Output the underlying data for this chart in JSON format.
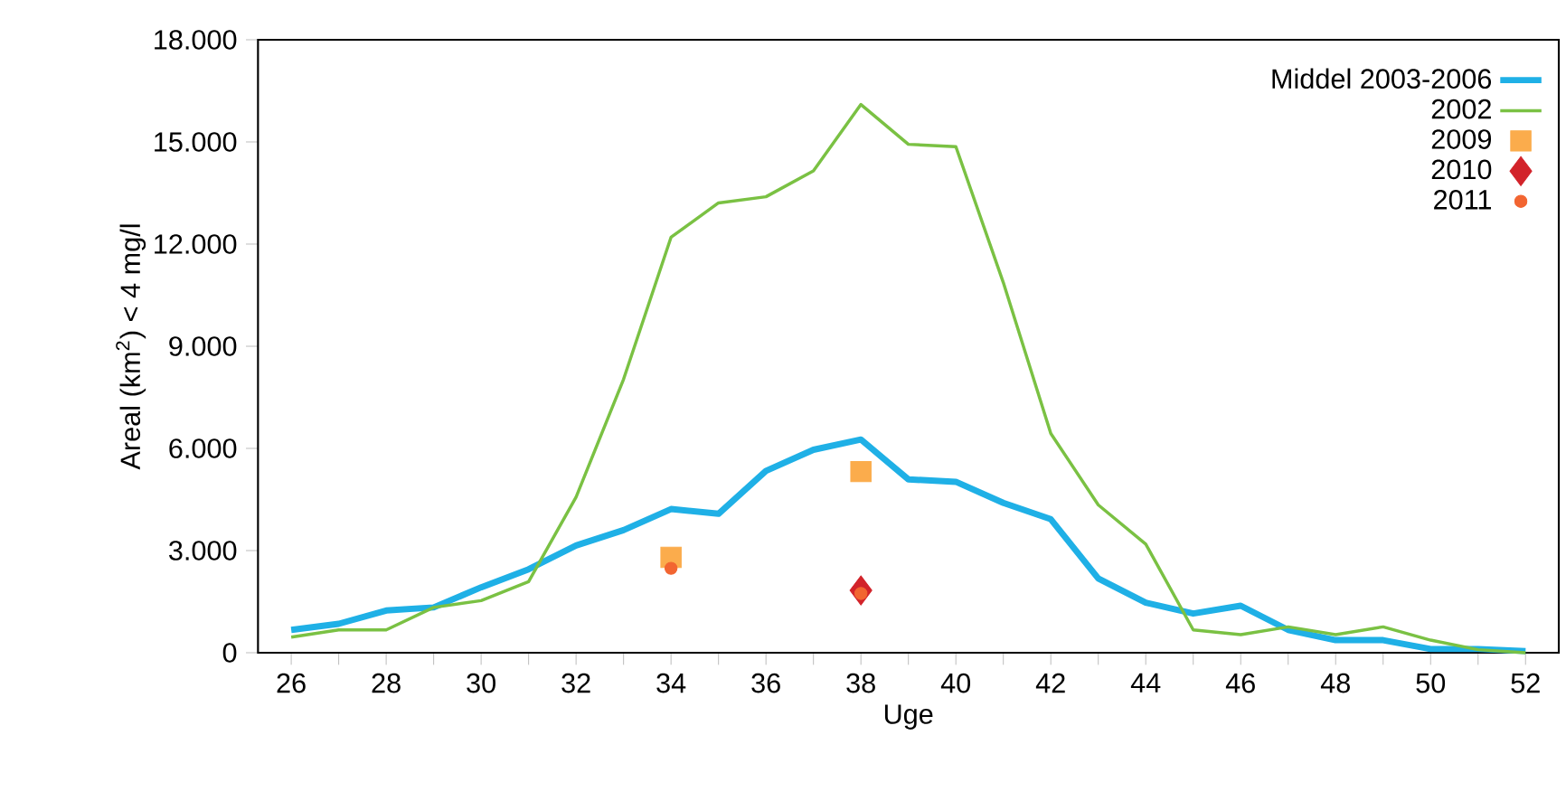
{
  "chart_data": {
    "type": "line",
    "xlabel": "Uge",
    "ylabel": "Areal (km$^{2}$) < 4 mg/l",
    "x": [
      26,
      27,
      28,
      29,
      30,
      31,
      32,
      33,
      34,
      35,
      36,
      37,
      38,
      39,
      40,
      41,
      42,
      43,
      44,
      45,
      46,
      47,
      48,
      49,
      50,
      51,
      52
    ],
    "series": [
      {
        "name": "Middel 2003-2006",
        "color": "#1fb0e6",
        "values": [
          670,
          850,
          1240,
          1330,
          1920,
          2450,
          3150,
          3600,
          4220,
          4080,
          5340,
          5960,
          6260,
          5090,
          5020,
          4400,
          3920,
          2180,
          1470,
          1150,
          1380,
          670,
          370,
          370,
          110,
          110,
          50
        ]
      },
      {
        "name": "2002",
        "color": "#7ac143",
        "values": [
          460,
          670,
          670,
          1330,
          1530,
          2090,
          4570,
          8030,
          12200,
          13210,
          13390,
          14150,
          16100,
          14930,
          14860,
          10870,
          6440,
          4340,
          3190,
          670,
          530,
          760,
          530,
          760,
          370,
          90,
          0
        ]
      },
      {
        "name": "2009",
        "color": "#fbac4c",
        "type": "scatter",
        "marker": "square",
        "values": [
          null,
          null,
          null,
          null,
          null,
          null,
          null,
          null,
          2800,
          null,
          null,
          null,
          5320,
          null,
          null,
          null,
          null,
          null,
          null,
          null,
          null,
          null,
          null,
          null,
          null,
          null,
          null
        ]
      },
      {
        "name": "2010",
        "color": "#d2232a",
        "type": "scatter",
        "marker": "diamond",
        "values": [
          null,
          null,
          null,
          null,
          null,
          null,
          null,
          null,
          null,
          null,
          null,
          null,
          1830,
          null,
          null,
          null,
          null,
          null,
          null,
          null,
          null,
          null,
          null,
          null,
          null,
          null,
          null
        ]
      },
      {
        "name": "2011",
        "color": "#f26531",
        "type": "scatter",
        "marker": "circle",
        "values": [
          null,
          null,
          null,
          null,
          null,
          null,
          null,
          null,
          2480,
          null,
          null,
          null,
          1740,
          null,
          null,
          null,
          null,
          null,
          null,
          null,
          null,
          null,
          null,
          null,
          null,
          null,
          null
        ]
      }
    ],
    "xlim": [
      25.3,
      52.7
    ],
    "xticks": [
      26,
      {
        "value": 27,
        "label": null
      },
      28,
      {
        "value": 29,
        "label": null
      },
      30,
      {
        "value": 31,
        "label": null
      },
      32,
      {
        "value": 33,
        "label": null
      },
      34,
      {
        "value": 35,
        "label": null
      },
      36,
      {
        "value": 37,
        "label": null
      },
      38,
      {
        "value": 39,
        "label": null
      },
      40,
      {
        "value": 41,
        "label": null
      },
      42,
      {
        "value": 43,
        "label": null
      },
      44,
      {
        "value": 45,
        "label": null
      },
      46,
      {
        "value": 47,
        "label": null
      },
      48,
      {
        "value": 49,
        "label": null
      },
      50,
      {
        "value": 51,
        "label": null
      },
      52
    ],
    "ylim": [
      0,
      18000
    ],
    "yticks": [
      0,
      {
        "value": 3000,
        "label": "3.000"
      },
      {
        "value": 6000,
        "label": "6.000"
      },
      {
        "value": 9000,
        "label": "9.000"
      },
      {
        "value": 12000,
        "label": "12.000"
      },
      {
        "value": 15000,
        "label": "15.000"
      },
      {
        "value": 18000,
        "label": "18.000"
      }
    ],
    "legend": "top right"
  }
}
